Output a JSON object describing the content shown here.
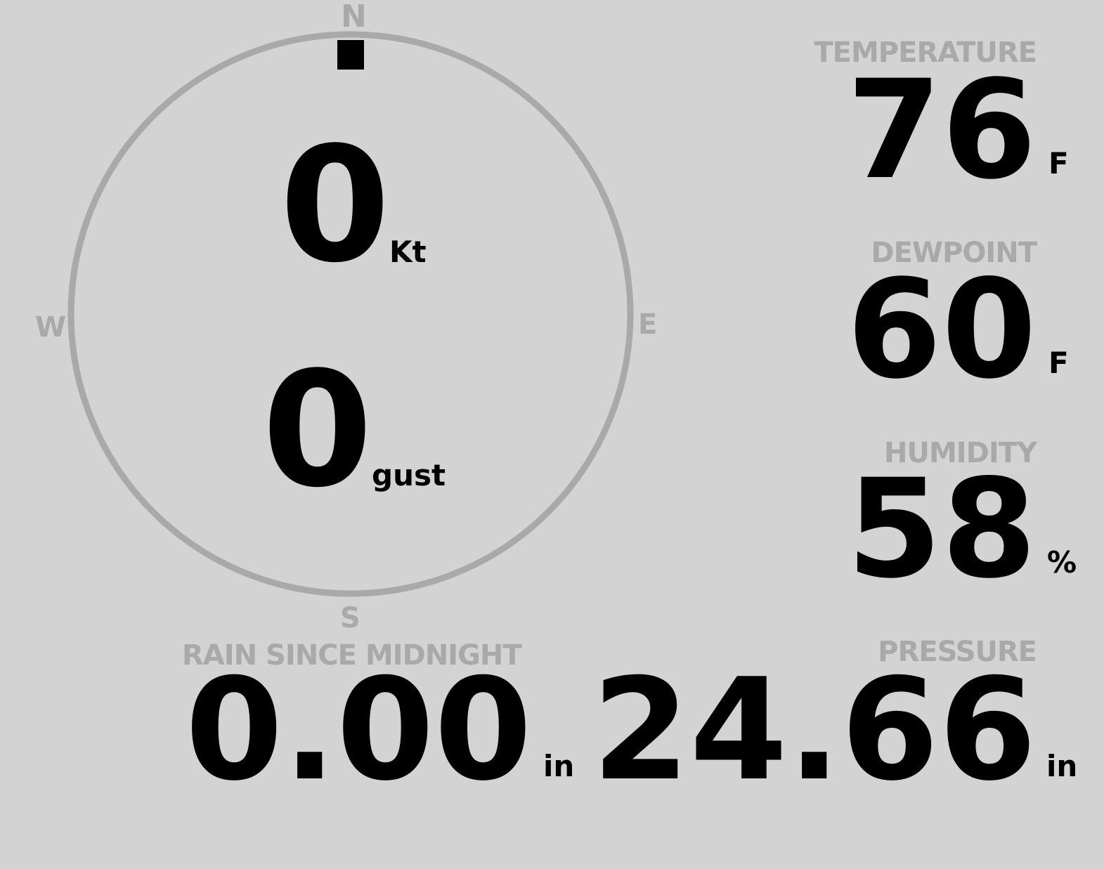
{
  "colors": {
    "background": "#d3d3d3",
    "muted": "#a9a9a9",
    "value": "#000000"
  },
  "wind": {
    "cardinals": {
      "n": "N",
      "e": "E",
      "s": "S",
      "w": "W"
    },
    "direction_deg": 0,
    "speed": "0",
    "speed_unit": "Kt",
    "gust": "0",
    "gust_unit": "gust"
  },
  "temperature": {
    "label": "TEMPERATURE",
    "value": "76",
    "unit": "F"
  },
  "dewpoint": {
    "label": "DEWPOINT",
    "value": "60",
    "unit": "F"
  },
  "humidity": {
    "label": "HUMIDITY",
    "value": "58",
    "unit": "%"
  },
  "rain": {
    "label": "RAIN SINCE MIDNIGHT",
    "value": "0.00",
    "unit": "in"
  },
  "pressure": {
    "label": "PRESSURE",
    "value": "24.66",
    "unit": "in"
  }
}
